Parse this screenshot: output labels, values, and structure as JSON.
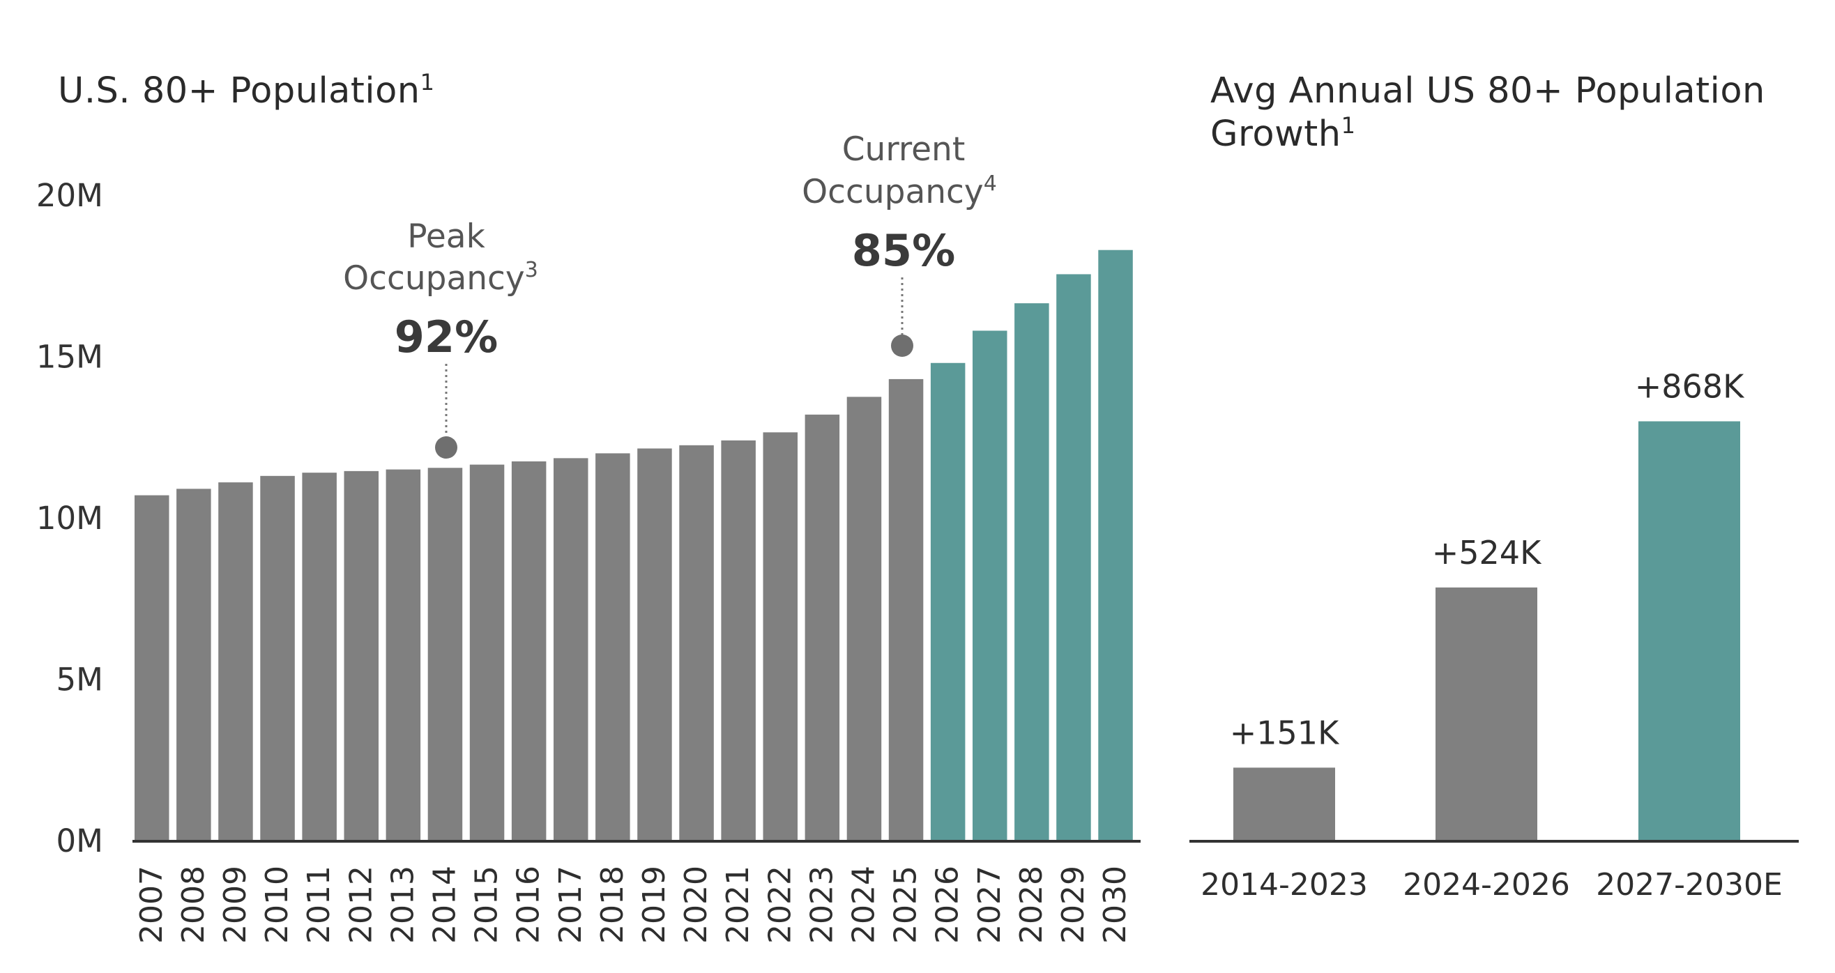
{
  "colors": {
    "historical": "#808080",
    "projected": "#5b9a98",
    "axis": "#333333",
    "marker": "#6f6f6f"
  },
  "left": {
    "title": "U.S. 80+ Population",
    "title_note": "1",
    "peak": {
      "label_line1": "Peak",
      "label_line2": "Occupancy",
      "note": "3",
      "value": "92%",
      "year": "2014"
    },
    "current": {
      "label_line1": "Current",
      "label_line2": "Occupancy",
      "note": "4",
      "value": "85%",
      "year": "2025"
    }
  },
  "right": {
    "title_line1": "Avg Annual US 80+ Population",
    "title_line2": "Growth",
    "title_note": "1"
  },
  "chart_data": [
    {
      "type": "bar",
      "title": "U.S. 80+ Population",
      "xlabel": "",
      "ylabel": "",
      "ylim": [
        0,
        20
      ],
      "yunit": "M",
      "yticks": [
        "0M",
        "5M",
        "10M",
        "15M",
        "20M"
      ],
      "categories": [
        "2007",
        "2008",
        "2009",
        "2010",
        "2011",
        "2012",
        "2013",
        "2014",
        "2015",
        "2016",
        "2017",
        "2018",
        "2019",
        "2020",
        "2021",
        "2022",
        "2023",
        "2024",
        "2025",
        "2026",
        "2027",
        "2028",
        "2029",
        "2030"
      ],
      "values": [
        10.7,
        10.9,
        11.1,
        11.3,
        11.4,
        11.45,
        11.5,
        11.55,
        11.65,
        11.75,
        11.85,
        12.0,
        12.15,
        12.25,
        12.4,
        12.65,
        13.2,
        13.75,
        14.3,
        14.8,
        15.8,
        16.65,
        17.55,
        18.3
      ],
      "projected_from": "2026",
      "grid": false
    },
    {
      "type": "bar",
      "title": "Avg Annual US 80+ Population Growth",
      "xlabel": "",
      "ylabel": "",
      "categories": [
        "2014-2023",
        "2024-2026",
        "2027-2030E"
      ],
      "values": [
        151,
        524,
        868
      ],
      "value_labels": [
        "+151K",
        "+524K",
        "+868K"
      ],
      "unit": "K",
      "projected": [
        false,
        false,
        true
      ],
      "grid": false
    }
  ]
}
